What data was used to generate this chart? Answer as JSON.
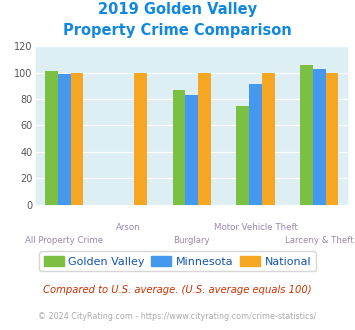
{
  "title_line1": "2019 Golden Valley",
  "title_line2": "Property Crime Comparison",
  "categories": [
    "All Property Crime",
    "Arson",
    "Burglary",
    "Motor Vehicle Theft",
    "Larceny & Theft"
  ],
  "series": {
    "Golden Valley": [
      101,
      null,
      87,
      75,
      106
    ],
    "Minnesota": [
      99,
      null,
      83,
      91,
      103
    ],
    "National": [
      100,
      100,
      100,
      100,
      100
    ]
  },
  "colors": {
    "Golden Valley": "#7bc043",
    "Minnesota": "#4499ee",
    "National": "#f5a623"
  },
  "ylim": [
    0,
    120
  ],
  "yticks": [
    0,
    20,
    40,
    60,
    80,
    100,
    120
  ],
  "plot_bg": "#ddeef5",
  "title_color": "#1188dd",
  "axis_label_color": "#9988aa",
  "legend_label_color": "#1155aa",
  "footnote1": "Compared to U.S. average. (U.S. average equals 100)",
  "footnote2": "© 2024 CityRating.com - https://www.cityrating.com/crime-statistics/",
  "footnote1_color": "#cc3300",
  "footnote2_color": "#aaaaaa",
  "cat_labels_row1": [
    "All Property Crime",
    "",
    "Burglary",
    "",
    "Larceny & Theft"
  ],
  "cat_labels_row2": [
    "",
    "Arson",
    "",
    "Motor Vehicle Theft",
    ""
  ]
}
